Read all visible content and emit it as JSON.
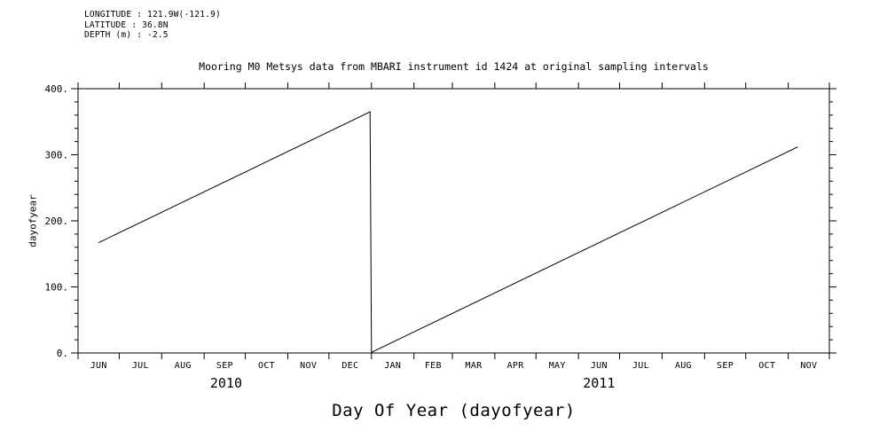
{
  "meta": {
    "longitude": "LONGITUDE : 121.9W(-121.9)",
    "latitude": "LATITUDE : 36.8N",
    "depth": "DEPTH (m) : -2.5"
  },
  "chart_data": {
    "type": "line",
    "title": "Mooring M0 Metsys data from MBARI instrument id 1424 at original sampling intervals",
    "xlabel": "Day Of Year (dayofyear)",
    "ylabel": "dayofyear",
    "ylim": [
      0,
      400
    ],
    "y_major_step": 100,
    "y_minor_step": 20,
    "yticks": [
      0,
      100,
      200,
      300,
      400
    ],
    "ytick_labels": [
      "0.",
      "100.",
      "200.",
      "300.",
      "400."
    ],
    "grid": false,
    "legend": "none",
    "x_range": [
      "2010-06-01",
      "2011-12-01"
    ],
    "month_labels": [
      "JUN",
      "JUL",
      "AUG",
      "SEP",
      "OCT",
      "NOV",
      "DEC",
      "JAN",
      "FEB",
      "MAR",
      "APR",
      "MAY",
      "JUN",
      "JUL",
      "AUG",
      "SEP",
      "OCT",
      "NOV"
    ],
    "year_labels": [
      {
        "label": "2010",
        "center_date": "2010-09-17"
      },
      {
        "label": "2011",
        "center_date": "2011-06-16"
      }
    ],
    "line_color": "#000000",
    "series": [
      {
        "name": "dayofyear",
        "points": [
          [
            "2010-06-16",
            167
          ],
          [
            "2010-12-31",
            365
          ],
          [
            "2011-01-01",
            1
          ],
          [
            "2011-11-08",
            312
          ]
        ]
      }
    ]
  }
}
